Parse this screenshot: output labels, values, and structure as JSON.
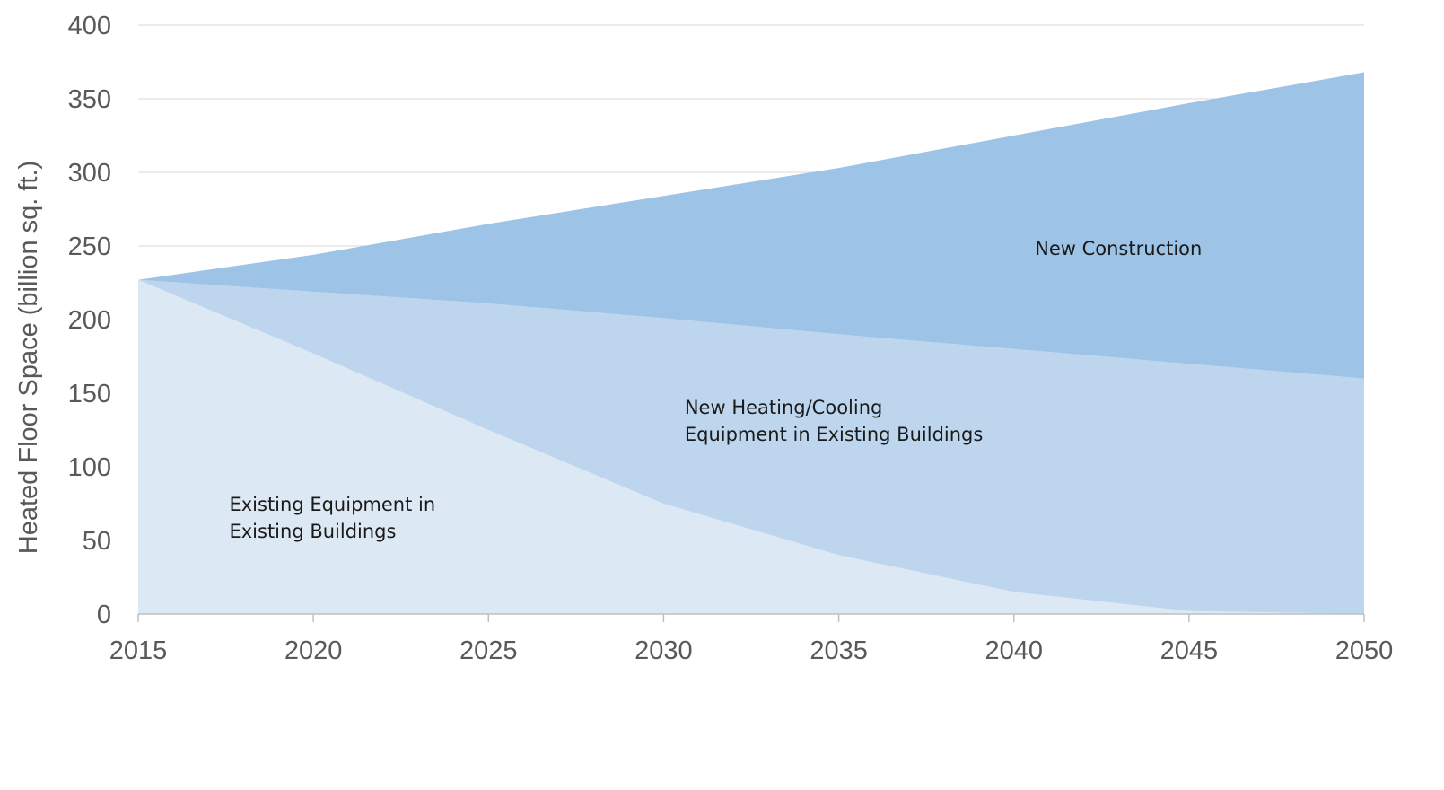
{
  "chart_data": {
    "type": "area",
    "stacked": true,
    "ylabel": "Heated Floor Space (billion sq. ft.)",
    "xlabel": "",
    "x": [
      2015,
      2020,
      2025,
      2030,
      2035,
      2040,
      2045,
      2050
    ],
    "xlim": [
      2015,
      2050
    ],
    "ylim": [
      0,
      400
    ],
    "yticks": [
      0,
      50,
      100,
      150,
      200,
      250,
      300,
      350,
      400
    ],
    "xticks": [
      2015,
      2020,
      2025,
      2030,
      2035,
      2040,
      2045,
      2050
    ],
    "grid": "horizontal",
    "legend": "none",
    "series": [
      {
        "key": "existing",
        "label_lines": [
          "Existing Equipment in",
          "Existing Buildings"
        ],
        "label_anchor": [
          2017.6,
          70
        ],
        "color": "#dde8f5",
        "values": [
          227,
          177,
          125,
          75,
          40,
          15,
          2,
          0
        ]
      },
      {
        "key": "new_equipment",
        "label_lines": [
          "New Heating/Cooling",
          "Equipment in Existing Buildings"
        ],
        "label_anchor": [
          2030.6,
          136
        ],
        "color": "#bdd6ee",
        "values": [
          0,
          42,
          86,
          126,
          150,
          165,
          168,
          160
        ]
      },
      {
        "key": "new_construction",
        "label_lines": [
          "New Construction"
        ],
        "label_anchor": [
          2040.6,
          244
        ],
        "color": "#9dc3e6",
        "values": [
          0,
          25,
          54,
          83,
          113,
          145,
          177,
          208
        ]
      }
    ]
  }
}
